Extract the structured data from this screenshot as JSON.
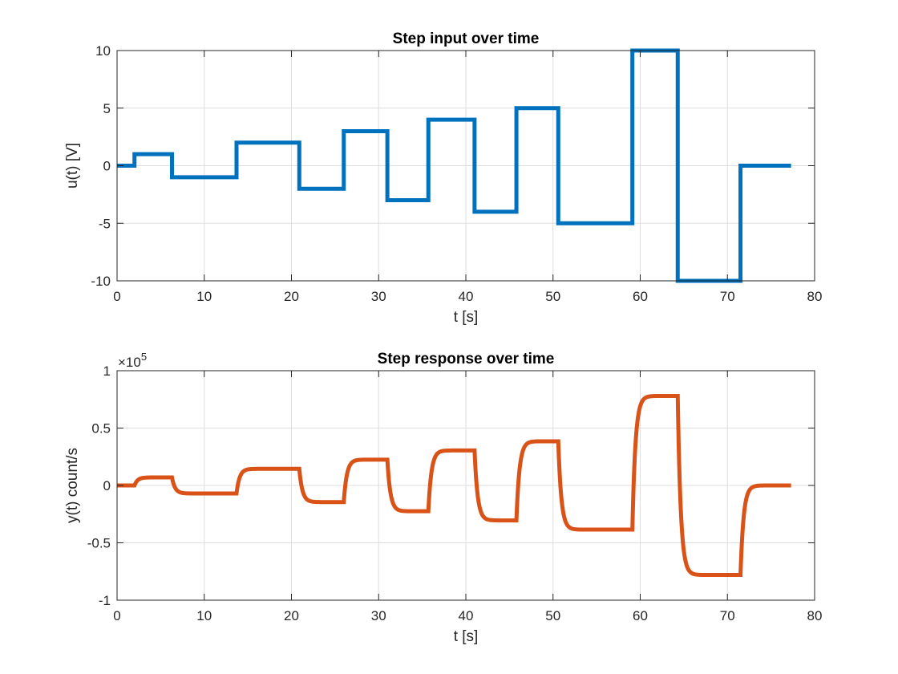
{
  "chart_data": [
    {
      "type": "line",
      "title": "Step input over time",
      "xlabel": "t [s]",
      "ylabel": "u(t) [V]",
      "xlim": [
        0,
        80
      ],
      "ylim": [
        -10,
        10
      ],
      "xticks": [
        0,
        10,
        20,
        30,
        40,
        50,
        60,
        70,
        80
      ],
      "xtick_labels": [
        "0",
        "10",
        "20",
        "30",
        "40",
        "50",
        "60",
        "70",
        "80"
      ],
      "yticks": [
        -10,
        -5,
        0,
        5,
        10
      ],
      "ytick_labels": [
        "-10",
        "-5",
        "0",
        "5",
        "10"
      ],
      "grid": true,
      "series": [
        {
          "color": "#0072BD",
          "x": [
            0,
            2.0,
            2.0,
            6.3,
            6.3,
            13.7,
            13.7,
            20.9,
            20.9,
            26.0,
            26.0,
            31.0,
            31.0,
            35.7,
            35.7,
            41.0,
            41.0,
            45.8,
            45.8,
            50.6,
            50.6,
            59.1,
            59.1,
            64.3,
            64.3,
            71.5,
            71.5,
            77.3
          ],
          "y": [
            0,
            0,
            1,
            1,
            -1,
            -1,
            2,
            2,
            -2,
            -2,
            3,
            3,
            -3,
            -3,
            4,
            4,
            -4,
            -4,
            5,
            5,
            -5,
            -5,
            10,
            10,
            -10,
            -10,
            0,
            0
          ]
        }
      ]
    },
    {
      "type": "line",
      "title": "Step response over time",
      "xlabel": "t [s]",
      "ylabel": "y(t) count/s",
      "exponent_base": "×10",
      "exponent_power": "5",
      "xlim": [
        0,
        80
      ],
      "ylim": [
        -1,
        1
      ],
      "xticks": [
        0,
        10,
        20,
        30,
        40,
        50,
        60,
        70,
        80
      ],
      "xtick_labels": [
        "0",
        "10",
        "20",
        "30",
        "40",
        "50",
        "60",
        "70",
        "80"
      ],
      "yticks": [
        -1,
        -0.5,
        0,
        0.5,
        1
      ],
      "ytick_labels": [
        "-1",
        "-0.5",
        "0",
        "0.5",
        "1"
      ],
      "grid": true,
      "series": [
        {
          "color": "#D95319",
          "step_times": [
            0,
            2.0,
            6.3,
            13.7,
            20.9,
            26.0,
            31.0,
            35.7,
            41.0,
            45.8,
            50.6,
            59.1,
            64.3,
            71.5
          ],
          "step_levels": [
            0,
            0.07,
            -0.07,
            0.145,
            -0.145,
            0.225,
            -0.225,
            0.305,
            -0.305,
            0.385,
            -0.385,
            0.78,
            -0.78,
            0
          ],
          "t_end": 77.3,
          "time_constant": 0.35
        }
      ]
    }
  ]
}
